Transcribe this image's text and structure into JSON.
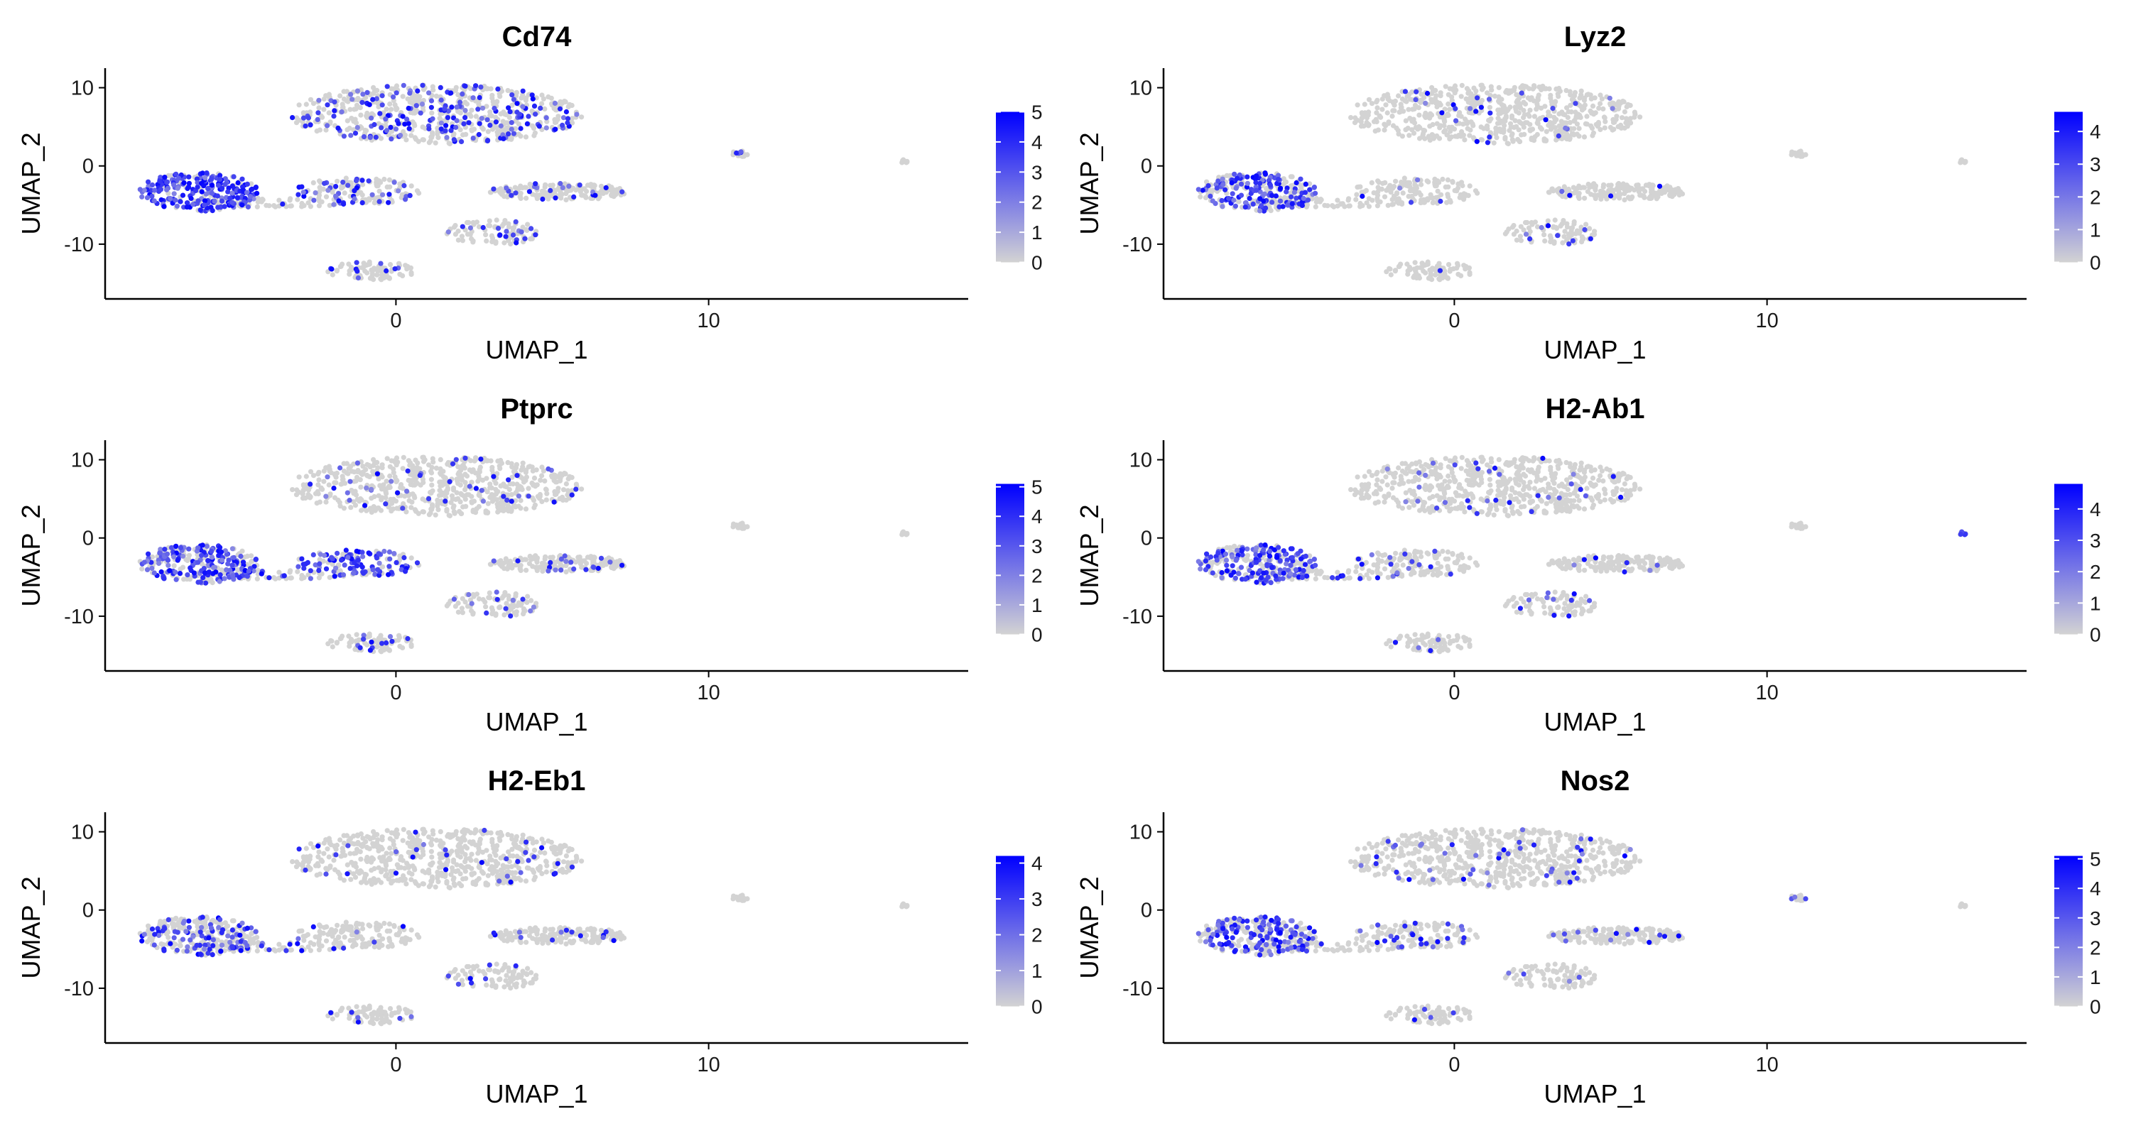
{
  "chart_data": [
    {
      "type": "scatter",
      "title": "Cd74",
      "xlabel": "UMAP_1",
      "ylabel": "UMAP_2",
      "xlim": [
        -9.3,
        18.3
      ],
      "ylim": [
        -17,
        12.5
      ],
      "x_ticks": [
        0,
        10
      ],
      "x_tick_labels": [
        "0",
        "10"
      ],
      "y_ticks": [
        10,
        0,
        -10
      ],
      "y_tick_labels": [
        "10",
        "0",
        "-10"
      ],
      "legend": {
        "placement": "right",
        "min": 0,
        "max": 5,
        "tick_labels": [
          "5",
          "4",
          "3",
          "2",
          "1",
          "0"
        ],
        "low_color": "#d3d3d3",
        "high_color": "#0000ff"
      },
      "cluster_expression": [
        0.3,
        0.85,
        0.25,
        0.12,
        0.18,
        0.12,
        0.2,
        0.3,
        0.0
      ]
    },
    {
      "type": "scatter",
      "title": "Lyz2",
      "xlabel": "UMAP_1",
      "ylabel": "UMAP_2",
      "xlim": [
        -9.3,
        18.3
      ],
      "ylim": [
        -17,
        12.5
      ],
      "x_ticks": [
        0,
        10
      ],
      "x_tick_labels": [
        "0",
        "10"
      ],
      "y_ticks": [
        10,
        0,
        -10
      ],
      "y_tick_labels": [
        "10",
        "0",
        "-10"
      ],
      "legend": {
        "placement": "right",
        "min": 0,
        "max": 4.6,
        "tick_labels": [
          "4",
          "3",
          "2",
          "1",
          "0"
        ],
        "low_color": "#d3d3d3",
        "high_color": "#0000ff"
      },
      "cluster_expression": [
        0.03,
        0.55,
        0.05,
        0.04,
        0.1,
        0.04,
        0.08,
        0.0,
        0.0
      ]
    },
    {
      "type": "scatter",
      "title": "Ptprc",
      "xlabel": "UMAP_1",
      "ylabel": "UMAP_2",
      "xlim": [
        -9.3,
        18.3
      ],
      "ylim": [
        -17,
        12.5
      ],
      "x_ticks": [
        0,
        10
      ],
      "x_tick_labels": [
        "0",
        "10"
      ],
      "y_ticks": [
        10,
        0,
        -10
      ],
      "y_tick_labels": [
        "10",
        "0",
        "-10"
      ],
      "legend": {
        "placement": "right",
        "min": 0,
        "max": 5.1,
        "tick_labels": [
          "5",
          "4",
          "3",
          "2",
          "1",
          "0"
        ],
        "low_color": "#d3d3d3",
        "high_color": "#0000ff"
      },
      "cluster_expression": [
        0.08,
        0.6,
        0.65,
        0.1,
        0.18,
        0.15,
        0.12,
        0.0,
        0.0
      ]
    },
    {
      "type": "scatter",
      "title": "H2-Ab1",
      "xlabel": "UMAP_1",
      "ylabel": "UMAP_2",
      "xlim": [
        -9.3,
        18.3
      ],
      "ylim": [
        -17,
        12.5
      ],
      "x_ticks": [
        0,
        10
      ],
      "x_tick_labels": [
        "0",
        "10"
      ],
      "y_ticks": [
        10,
        0,
        -10
      ],
      "y_tick_labels": [
        "10",
        "0",
        "-10"
      ],
      "legend": {
        "placement": "right",
        "min": 0,
        "max": 4.8,
        "tick_labels": [
          "4",
          "3",
          "2",
          "1",
          "0"
        ],
        "low_color": "#d3d3d3",
        "high_color": "#0000ff"
      },
      "cluster_expression": [
        0.06,
        0.55,
        0.08,
        0.05,
        0.15,
        0.06,
        0.15,
        0.0,
        0.6
      ]
    },
    {
      "type": "scatter",
      "title": "H2-Eb1",
      "xlabel": "UMAP_1",
      "ylabel": "UMAP_2",
      "xlim": [
        -9.3,
        18.3
      ],
      "ylim": [
        -17,
        12.5
      ],
      "x_ticks": [
        0,
        10
      ],
      "x_tick_labels": [
        "0",
        "10"
      ],
      "y_ticks": [
        10,
        0,
        -10
      ],
      "y_tick_labels": [
        "10",
        "0",
        "-10"
      ],
      "legend": {
        "placement": "right",
        "min": 0,
        "max": 4.2,
        "tick_labels": [
          "4",
          "3",
          "2",
          "1",
          "0"
        ],
        "low_color": "#d3d3d3",
        "high_color": "#0000ff"
      },
      "cluster_expression": [
        0.05,
        0.35,
        0.06,
        0.06,
        0.12,
        0.06,
        0.25,
        0.0,
        0.0
      ]
    },
    {
      "type": "scatter",
      "title": "Nos2",
      "xlabel": "UMAP_1",
      "ylabel": "UMAP_2",
      "xlim": [
        -9.3,
        18.3
      ],
      "ylim": [
        -17,
        12.5
      ],
      "x_ticks": [
        0,
        10
      ],
      "x_tick_labels": [
        "0",
        "10"
      ],
      "y_ticks": [
        10,
        0,
        -10
      ],
      "y_tick_labels": [
        "10",
        "0",
        "-10"
      ],
      "legend": {
        "placement": "right",
        "min": 0,
        "max": 5.1,
        "tick_labels": [
          "5",
          "4",
          "3",
          "2",
          "1",
          "0"
        ],
        "low_color": "#d3d3d3",
        "high_color": "#0000ff"
      },
      "cluster_expression": [
        0.06,
        0.4,
        0.15,
        0.05,
        0.1,
        0.04,
        0.05,
        0.3,
        0.0
      ]
    }
  ],
  "clusters": [
    {
      "cx": 1.3,
      "cy": 6.6,
      "rx": 4.7,
      "ry": 3.8,
      "n": 650
    },
    {
      "cx": -6.3,
      "cy": -3.3,
      "rx": 1.9,
      "ry": 2.5,
      "n": 260
    },
    {
      "cx": -1.2,
      "cy": -3.2,
      "rx": 2.0,
      "ry": 1.7,
      "n": 140
    },
    {
      "cx": 5.2,
      "cy": -3.3,
      "rx": 2.2,
      "ry": 1.1,
      "n": 190
    },
    {
      "cx": 3.1,
      "cy": -8.5,
      "rx": 1.5,
      "ry": 1.6,
      "n": 90
    },
    {
      "cx": -0.8,
      "cy": -13.4,
      "rx": 1.4,
      "ry": 1.2,
      "n": 80
    },
    {
      "cx": -4.0,
      "cy": -4.7,
      "rx": 2.8,
      "ry": 0.6,
      "n": 70
    },
    {
      "cx": 11.0,
      "cy": 1.6,
      "rx": 0.3,
      "ry": 0.4,
      "n": 14
    },
    {
      "cx": 16.2,
      "cy": 0.6,
      "rx": 0.18,
      "ry": 0.25,
      "n": 8
    }
  ],
  "colors": {
    "low": "#d3d3d3",
    "high": "#0000ff",
    "axis": "#000000"
  }
}
